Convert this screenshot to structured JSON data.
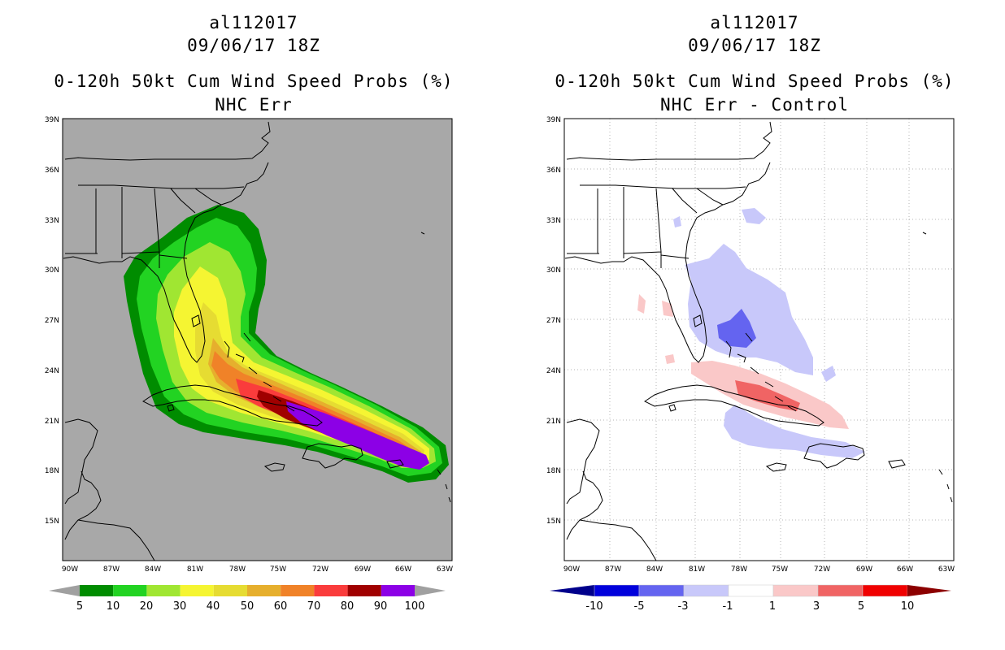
{
  "panels": [
    {
      "storm": "al112017",
      "datetime": "09/06/17 18Z",
      "product": "0-120h 50kt Cum Wind Speed Probs (%)",
      "subtitle": "NHC Err",
      "background": "#a8a8a8"
    },
    {
      "storm": "al112017",
      "datetime": "09/06/17 18Z",
      "product": "0-120h 50kt Cum Wind Speed Probs (%)",
      "subtitle": "NHC Err - Control",
      "background": "#ffffff"
    }
  ],
  "axes": {
    "lat_labels": [
      "39N",
      "36N",
      "33N",
      "30N",
      "27N",
      "24N",
      "21N",
      "18N",
      "15N"
    ],
    "lon_labels": [
      "90W",
      "87W",
      "84W",
      "81W",
      "78W",
      "75W",
      "72W",
      "69W",
      "66W",
      "63W"
    ]
  },
  "colorbar_prob": {
    "labels": [
      "5",
      "10",
      "20",
      "30",
      "40",
      "50",
      "60",
      "70",
      "80",
      "90",
      "100"
    ],
    "colors": [
      "#008c00",
      "#22d322",
      "#a0e632",
      "#f5f532",
      "#e6dc32",
      "#e6af2d",
      "#f08228",
      "#fa3c3c",
      "#a00000",
      "#8c00e6"
    ],
    "end_color": "#a0a0a0"
  },
  "colorbar_diff": {
    "labels": [
      "-10",
      "-5",
      "-3",
      "-1",
      "1",
      "3",
      "5",
      "10"
    ],
    "colors": [
      "#0000dc",
      "#6464f0",
      "#c8c8fa",
      "#ffffff",
      "#fac8c8",
      "#f06464",
      "#f00000"
    ],
    "end_low": "#00008c",
    "end_high": "#8c0000"
  }
}
